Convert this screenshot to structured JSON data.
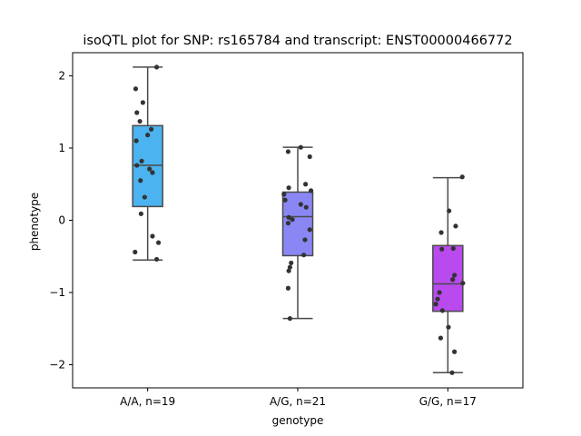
{
  "chart_data": {
    "type": "box",
    "title": "isoQTL plot for SNP: rs165784 and transcript: ENST00000466772",
    "xlabel": "genotype",
    "ylabel": "phenotype",
    "ylim": [
      -2.32,
      2.32
    ],
    "yticks": [
      -2,
      -1,
      0,
      1,
      2
    ],
    "ytick_labels": [
      "−2",
      "−1",
      "0",
      "1",
      "2"
    ],
    "categories": [
      "A/A, n=19",
      "A/G, n=21",
      "G/G, n=17"
    ],
    "colors": [
      "#4bb3ef",
      "#8a87f5",
      "#b94aee"
    ],
    "boxes": [
      {
        "whisker_low": -0.55,
        "q1": 0.19,
        "median": 0.76,
        "q3": 1.31,
        "whisker_high": 2.12
      },
      {
        "whisker_low": -1.36,
        "q1": -0.49,
        "median": 0.05,
        "q3": 0.39,
        "whisker_high": 1.01
      },
      {
        "whisker_low": -2.11,
        "q1": -1.26,
        "median": -0.88,
        "q3": -0.35,
        "whisker_high": 0.59
      }
    ],
    "points": [
      [
        {
          "dx": 0.15,
          "y": 2.12
        },
        {
          "dx": -0.2,
          "y": 1.82
        },
        {
          "dx": -0.08,
          "y": 1.63
        },
        {
          "dx": -0.18,
          "y": 1.49
        },
        {
          "dx": -0.13,
          "y": 1.37
        },
        {
          "dx": 0.06,
          "y": 1.26
        },
        {
          "dx": 0.0,
          "y": 1.18
        },
        {
          "dx": -0.19,
          "y": 1.1
        },
        {
          "dx": -0.1,
          "y": 0.82
        },
        {
          "dx": -0.18,
          "y": 0.76
        },
        {
          "dx": 0.03,
          "y": 0.71
        },
        {
          "dx": 0.08,
          "y": 0.66
        },
        {
          "dx": -0.12,
          "y": 0.55
        },
        {
          "dx": -0.05,
          "y": 0.32
        },
        {
          "dx": -0.11,
          "y": 0.09
        },
        {
          "dx": 0.08,
          "y": -0.22
        },
        {
          "dx": 0.18,
          "y": -0.31
        },
        {
          "dx": -0.21,
          "y": -0.44
        },
        {
          "dx": 0.15,
          "y": -0.54
        }
      ],
      [
        {
          "dx": 0.05,
          "y": 1.01
        },
        {
          "dx": -0.16,
          "y": 0.95
        },
        {
          "dx": 0.2,
          "y": 0.88
        },
        {
          "dx": 0.13,
          "y": 0.5
        },
        {
          "dx": -0.15,
          "y": 0.45
        },
        {
          "dx": 0.22,
          "y": 0.41
        },
        {
          "dx": -0.23,
          "y": 0.36
        },
        {
          "dx": -0.21,
          "y": 0.28
        },
        {
          "dx": 0.05,
          "y": 0.22
        },
        {
          "dx": 0.14,
          "y": 0.18
        },
        {
          "dx": -0.15,
          "y": 0.04
        },
        {
          "dx": -0.09,
          "y": 0.01
        },
        {
          "dx": -0.16,
          "y": -0.04
        },
        {
          "dx": 0.2,
          "y": -0.13
        },
        {
          "dx": 0.12,
          "y": -0.27
        },
        {
          "dx": 0.1,
          "y": -0.48
        },
        {
          "dx": -0.11,
          "y": -0.59
        },
        {
          "dx": -0.13,
          "y": -0.65
        },
        {
          "dx": -0.15,
          "y": -0.7
        },
        {
          "dx": -0.16,
          "y": -0.94
        },
        {
          "dx": -0.13,
          "y": -1.36
        }
      ],
      [
        {
          "dx": 0.24,
          "y": 0.6
        },
        {
          "dx": 0.02,
          "y": 0.13
        },
        {
          "dx": 0.13,
          "y": -0.08
        },
        {
          "dx": -0.11,
          "y": -0.17
        },
        {
          "dx": 0.09,
          "y": -0.39
        },
        {
          "dx": -0.1,
          "y": -0.4
        },
        {
          "dx": 0.11,
          "y": -0.76
        },
        {
          "dx": 0.08,
          "y": -0.82
        },
        {
          "dx": 0.25,
          "y": -0.87
        },
        {
          "dx": -0.14,
          "y": -1.0
        },
        {
          "dx": -0.17,
          "y": -1.09
        },
        {
          "dx": -0.2,
          "y": -1.16
        },
        {
          "dx": -0.09,
          "y": -1.25
        },
        {
          "dx": 0.01,
          "y": -1.48
        },
        {
          "dx": -0.12,
          "y": -1.63
        },
        {
          "dx": 0.11,
          "y": -1.82
        },
        {
          "dx": 0.07,
          "y": -2.11
        }
      ]
    ]
  }
}
